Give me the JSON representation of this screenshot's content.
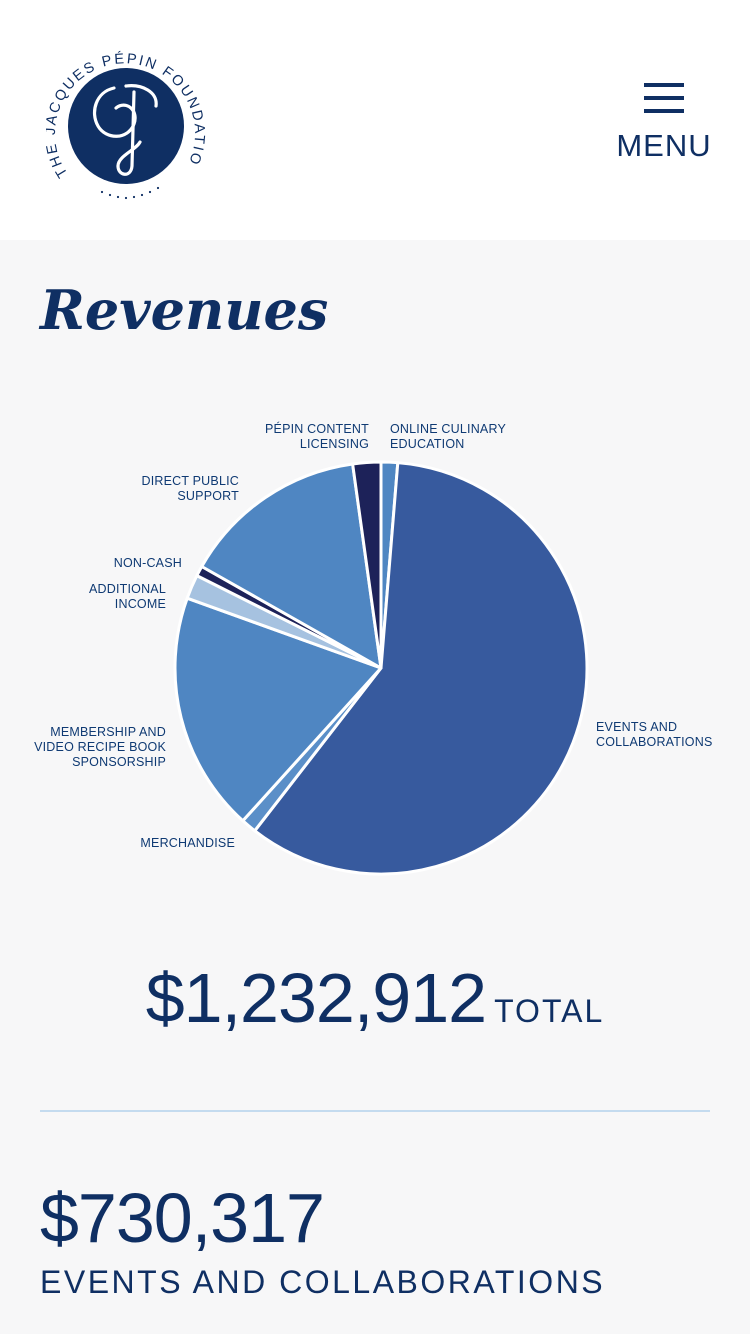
{
  "header": {
    "logo_text": "THE JACQUES PÉPIN FOUNDATION",
    "menu_label": "MENU"
  },
  "section": {
    "title": "Revenues"
  },
  "chart_data": {
    "type": "pie",
    "title": "",
    "start_angle_deg": 0,
    "slices": [
      {
        "label_lines": [
          "ONLINE CULINARY",
          "EDUCATION"
        ],
        "share": 1.3,
        "color": "#4f86c2"
      },
      {
        "label_lines": [
          "EVENTS AND",
          "COLLABORATIONS"
        ],
        "share": 59.2,
        "color": "#375a9e"
      },
      {
        "label_lines": [
          "MERCHANDISE"
        ],
        "share": 1.2,
        "color": "#5b8fc8"
      },
      {
        "label_lines": [
          "MEMBERSHIP AND",
          "VIDEO RECIPE BOOK",
          "SPONSORSHIP"
        ],
        "share": 18.8,
        "color": "#4f86c2"
      },
      {
        "label_lines": [
          "ADDITIONAL",
          "INCOME"
        ],
        "share": 1.9,
        "color": "#a6c2e0"
      },
      {
        "label_lines": [
          "NON-CASH"
        ],
        "share": 0.8,
        "color": "#1d2259"
      },
      {
        "label_lines": [
          "DIRECT PUBLIC",
          "SUPPORT"
        ],
        "share": 14.6,
        "color": "#4f86c2"
      },
      {
        "label_lines": [
          "PÉPIN CONTENT",
          "LICENSING"
        ],
        "share": 2.2,
        "color": "#1d2259"
      }
    ]
  },
  "total": {
    "value": "$1,232,912",
    "label": "TOTAL"
  },
  "stat": {
    "value": "$730,317",
    "label": "EVENTS AND COLLABORATIONS"
  }
}
